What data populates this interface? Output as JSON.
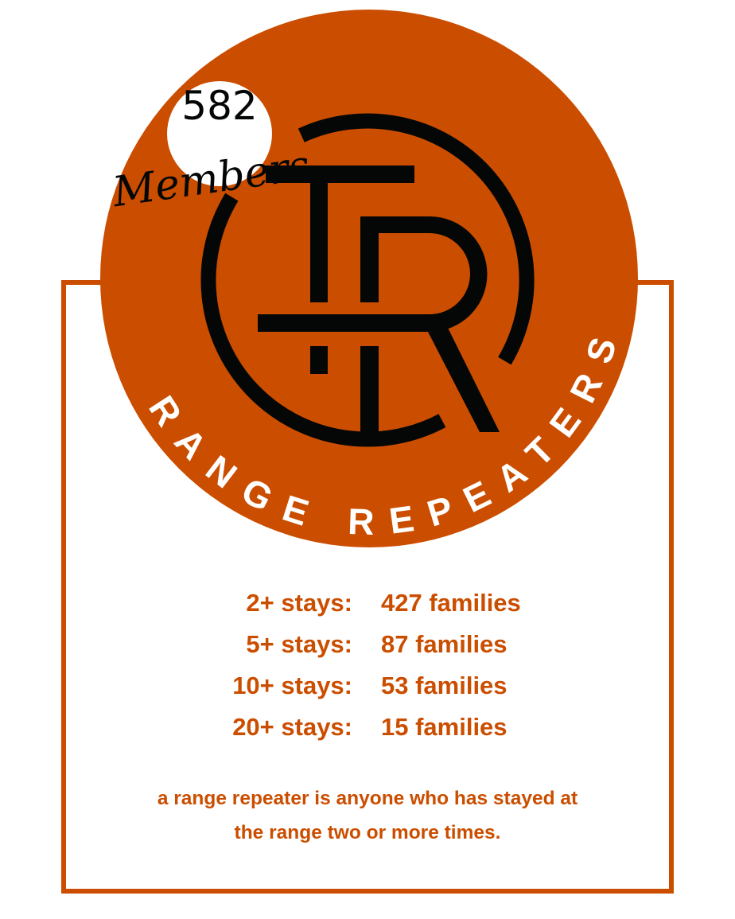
{
  "colors": {
    "brand": "#CB4E00",
    "logo": "#050707",
    "badge": "#FFFFFF"
  },
  "badge": {
    "count": "582",
    "label": "Members"
  },
  "logo": {
    "monogram": "TR",
    "arc_text": "RANGE REPEATERS"
  },
  "stats": [
    {
      "label": "2+ stays:",
      "value": "427 families"
    },
    {
      "label": "5+ stays:",
      "value": "87 families"
    },
    {
      "label": "10+ stays:",
      "value": "53 families"
    },
    {
      "label": "20+ stays:",
      "value": "15 families"
    }
  ],
  "note": {
    "line1": "a range repeater is anyone who has stayed at",
    "line2": "the range two or more times."
  }
}
